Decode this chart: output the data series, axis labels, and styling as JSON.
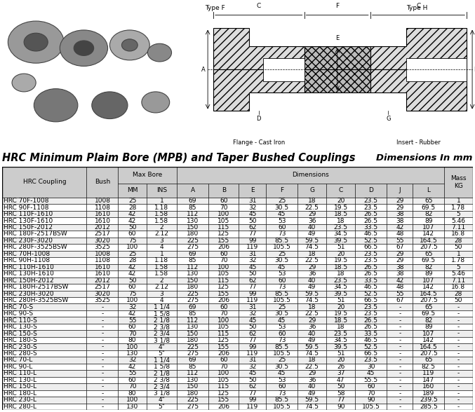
{
  "title1": "HRC Minimum Plaim Bore (MPB) and Taper Bushed Couplings",
  "title2": "Dimensions In mm",
  "type_f_label": "Type F",
  "type_h_label": "Type H",
  "flange_label": "Flange - Cast Iron",
  "insert_label": "Insert - Rubber",
  "rows": [
    [
      "HRC 70F-1008",
      "1008",
      "25",
      "1",
      "69",
      "60",
      "31",
      "25",
      "18",
      "20",
      "23.5",
      "29",
      "65",
      "1"
    ],
    [
      "HRC 90F-1108",
      "1108",
      "28",
      "1.18",
      "85",
      "70",
      "32",
      "30.5",
      "22.5",
      "19.5",
      "23.5",
      "29",
      "69.5",
      "1.78"
    ],
    [
      "HRC 110F-1610",
      "1610",
      "42",
      "1.58",
      "112",
      "100",
      "45",
      "45",
      "29",
      "18.5",
      "26.5",
      "38",
      "82",
      "5"
    ],
    [
      "HRC 130F-1610",
      "1610",
      "42",
      "1.58",
      "130",
      "105",
      "50",
      "53",
      "36",
      "18",
      "26.5",
      "38",
      "89",
      "5.46"
    ],
    [
      "HRC 150F-2012",
      "2012",
      "50",
      "2",
      "150",
      "115",
      "62",
      "60",
      "40",
      "23.5",
      "33.5",
      "42",
      "107",
      "7.11"
    ],
    [
      "HRC 180F-2517BSW",
      "2517",
      "60",
      "2.12",
      "180",
      "125",
      "77",
      "73",
      "49",
      "34.5",
      "46.5",
      "48",
      "142",
      "16.8"
    ],
    [
      "HRC 230F-3020",
      "3020",
      "75",
      "3",
      "225",
      "155",
      "99",
      "85.5",
      "59.5",
      "39.5",
      "52.5",
      "55",
      "164.5",
      "28"
    ],
    [
      "HRC 280F-3525BSW",
      "3525",
      "100",
      "4",
      "275",
      "206",
      "119",
      "105.5",
      "74.5",
      "51",
      "66.5",
      "67",
      "207.5",
      "50"
    ],
    [
      "HRC 70H-1008",
      "1008",
      "25",
      "1",
      "69",
      "60",
      "31",
      "25",
      "18",
      "20",
      "23.5",
      "29",
      "65",
      "1"
    ],
    [
      "HRC 90H-1108",
      "1108",
      "28",
      "1.18",
      "85",
      "70",
      "32",
      "30.5",
      "22.5",
      "19.5",
      "23.5",
      "29",
      "69.5",
      "1.78"
    ],
    [
      "HRC 110H-1610",
      "1610",
      "42",
      "1.58",
      "112",
      "100",
      "45",
      "45",
      "29",
      "18.5",
      "26.5",
      "38",
      "82",
      "5"
    ],
    [
      "HRC 130H-1610",
      "1610",
      "42",
      "1.58",
      "130",
      "105",
      "50",
      "53",
      "36",
      "18",
      "26.5",
      "38",
      "89",
      "5.46"
    ],
    [
      "HRC 150H-2012",
      "2012",
      "50",
      "2",
      "150",
      "115",
      "62",
      "60",
      "40",
      "23.5",
      "33.5",
      "42",
      "107",
      "7.11"
    ],
    [
      "HRC 180H-2517BSW",
      "2517",
      "60",
      "2.12",
      "180",
      "125",
      "77",
      "73",
      "49",
      "34.5",
      "46.5",
      "48",
      "142",
      "16.8"
    ],
    [
      "HRC 230H-3020",
      "3020",
      "75",
      "3",
      "225",
      "155",
      "99",
      "85.5",
      "59.5",
      "39.5",
      "52.5",
      "55",
      "164.5",
      "28"
    ],
    [
      "HRC 280H-3525BSW",
      "3525",
      "100",
      "4",
      "275",
      "206",
      "119",
      "105.5",
      "74.5",
      "51",
      "66.5",
      "67",
      "207.5",
      "50"
    ],
    [
      "HRC 70-S",
      "-",
      "32",
      "1 1/4",
      "69",
      "60",
      "31",
      "25",
      "18",
      "20",
      "23.5",
      "-",
      "65",
      "-"
    ],
    [
      "HRC 90-S",
      "-",
      "42",
      "1 5/8",
      "85",
      "70",
      "32",
      "30.5",
      "22.5",
      "19.5",
      "23.5",
      "-",
      "69.5",
      "-"
    ],
    [
      "HRC 110-S",
      "-",
      "55",
      "2 1/8",
      "112",
      "100",
      "45",
      "45",
      "29",
      "18.5",
      "26.5",
      "-",
      "82",
      "-"
    ],
    [
      "HRC 130-S",
      "-",
      "60",
      "2 3/8",
      "130",
      "105",
      "50",
      "53",
      "36",
      "18",
      "26.5",
      "-",
      "89",
      "-"
    ],
    [
      "HRC 150-S",
      "-",
      "70",
      "2 3/4",
      "150",
      "115",
      "62",
      "60",
      "40",
      "23.5",
      "33.5",
      "-",
      "107",
      "-"
    ],
    [
      "HRC 180-S",
      "-",
      "80",
      "3 1/8",
      "180",
      "125",
      "77",
      "73",
      "49",
      "34.5",
      "46.5",
      "-",
      "142",
      "-"
    ],
    [
      "HRC 230-S",
      "-",
      "100",
      "4\"",
      "225",
      "155",
      "99",
      "85.5",
      "59.5",
      "39.5",
      "52.5",
      "-",
      "164.5",
      "-"
    ],
    [
      "HRC 280-S",
      "-",
      "130",
      "5\"",
      "275",
      "206",
      "119",
      "105.5",
      "74.5",
      "51",
      "66.5",
      "-",
      "207.5",
      "-"
    ],
    [
      "HRC 70-L",
      "-",
      "32",
      "1 1/4",
      "69",
      "60",
      "31",
      "25",
      "18",
      "20",
      "23.5",
      "-",
      "65",
      "-"
    ],
    [
      "HRC 90-L",
      "-",
      "42",
      "1 5/8",
      "85",
      "70",
      "32",
      "30.5",
      "22.5",
      "26",
      "30",
      "-",
      "82.5",
      "-"
    ],
    [
      "HRC 110-L",
      "-",
      "55",
      "2 1/8",
      "112",
      "100",
      "45",
      "45",
      "29",
      "37",
      "45",
      "-",
      "119",
      "-"
    ],
    [
      "HRC 130-L",
      "-",
      "60",
      "2 3/8",
      "130",
      "105",
      "50",
      "53",
      "36",
      "47",
      "55.5",
      "-",
      "147",
      "-"
    ],
    [
      "HRC 150-L",
      "-",
      "70",
      "2 3/4",
      "150",
      "115",
      "62",
      "60",
      "40",
      "50",
      "60",
      "-",
      "160",
      "-"
    ],
    [
      "HRC 180-L",
      "-",
      "80",
      "3 1/8",
      "180",
      "125",
      "77",
      "73",
      "49",
      "58",
      "70",
      "-",
      "189",
      "-"
    ],
    [
      "HRC 230-L",
      "-",
      "100",
      "4\"",
      "225",
      "155",
      "99",
      "85.5",
      "59.5",
      "77",
      "90",
      "-",
      "239.5",
      "-"
    ],
    [
      "HRC 280-L",
      "-",
      "130",
      "5\"",
      "275",
      "206",
      "119",
      "105.5",
      "74.5",
      "90",
      "105.5",
      "-",
      "285.5",
      "-"
    ]
  ],
  "col_widths": [
    1.55,
    0.58,
    0.52,
    0.56,
    0.58,
    0.56,
    0.5,
    0.58,
    0.53,
    0.53,
    0.58,
    0.48,
    0.58,
    0.52
  ],
  "header_bg": "#cccccc",
  "font_size_table": 6.5,
  "font_size_title1": 10.5,
  "font_size_title2": 9.5,
  "lw_outer": 1.0,
  "lw_inner": 0.4
}
